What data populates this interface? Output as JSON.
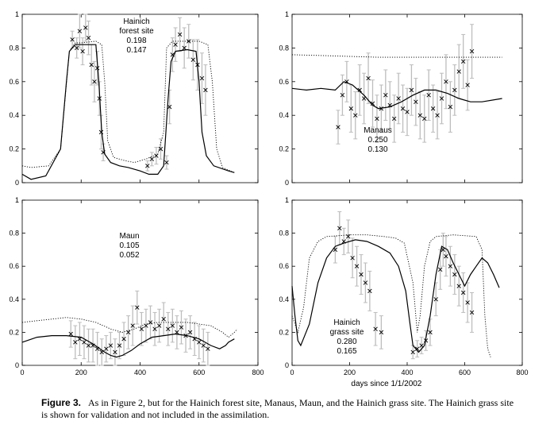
{
  "colors": {
    "obs": "#000000",
    "errorbar": "#bdbdbd",
    "prior_text": "#9a9a9a",
    "line": "#000000"
  },
  "caption": {
    "label": "Figure 3.",
    "text": "As in Figure 2, but for the Hainich forest site, Manaus, Maun, and the Hainich grass site. The Hainich grass site is shown for validation and not included in the assimilation."
  },
  "chart_data": [
    {
      "type": "line",
      "site_label": [
        "Hainich",
        "forest site"
      ],
      "prior_value": "0.198",
      "posterior_value": "0.147",
      "xlabel": "",
      "xlim": [
        0,
        800
      ],
      "ylim": [
        0,
        1
      ],
      "xticks": [],
      "yticks": [
        "0",
        "0.2",
        "0.4",
        "0.6",
        "0.8",
        "1"
      ],
      "dotted": [
        [
          0,
          0.1
        ],
        [
          30,
          0.09
        ],
        [
          90,
          0.1
        ],
        [
          130,
          0.2
        ],
        [
          160,
          0.78
        ],
        [
          180,
          0.83
        ],
        [
          200,
          0.83
        ],
        [
          250,
          0.84
        ],
        [
          270,
          0.82
        ],
        [
          280,
          0.6
        ],
        [
          290,
          0.25
        ],
        [
          310,
          0.15
        ],
        [
          330,
          0.14
        ],
        [
          350,
          0.13
        ],
        [
          380,
          0.12
        ],
        [
          420,
          0.14
        ],
        [
          460,
          0.17
        ],
        [
          480,
          0.3
        ],
        [
          490,
          0.8
        ],
        [
          510,
          0.84
        ],
        [
          600,
          0.84
        ],
        [
          630,
          0.82
        ],
        [
          645,
          0.6
        ],
        [
          660,
          0.2
        ],
        [
          680,
          0.09
        ],
        [
          720,
          0.06
        ]
      ],
      "solid": [
        [
          0,
          0.05
        ],
        [
          30,
          0.02
        ],
        [
          80,
          0.04
        ],
        [
          130,
          0.2
        ],
        [
          150,
          0.6
        ],
        [
          160,
          0.78
        ],
        [
          180,
          0.82
        ],
        [
          250,
          0.82
        ],
        [
          260,
          0.6
        ],
        [
          270,
          0.3
        ],
        [
          280,
          0.17
        ],
        [
          300,
          0.12
        ],
        [
          330,
          0.1
        ],
        [
          360,
          0.09
        ],
        [
          400,
          0.07
        ],
        [
          430,
          0.05
        ],
        [
          460,
          0.05
        ],
        [
          480,
          0.1
        ],
        [
          495,
          0.5
        ],
        [
          505,
          0.72
        ],
        [
          520,
          0.78
        ],
        [
          560,
          0.79
        ],
        [
          590,
          0.78
        ],
        [
          600,
          0.6
        ],
        [
          610,
          0.3
        ],
        [
          625,
          0.16
        ],
        [
          650,
          0.1
        ],
        [
          700,
          0.07
        ],
        [
          720,
          0.06
        ]
      ],
      "obs": [
        [
          170,
          0.85,
          0.05
        ],
        [
          185,
          0.8,
          0.06
        ],
        [
          195,
          0.9,
          0.1
        ],
        [
          205,
          0.78,
          0.08
        ],
        [
          215,
          0.92,
          0.08
        ],
        [
          225,
          0.86,
          0.1
        ],
        [
          235,
          0.7,
          0.12
        ],
        [
          245,
          0.6,
          0.12
        ],
        [
          255,
          0.68,
          0.1
        ],
        [
          262,
          0.5,
          0.1
        ],
        [
          268,
          0.3,
          0.1
        ],
        [
          275,
          0.18,
          0.05
        ],
        [
          425,
          0.1,
          0.03
        ],
        [
          440,
          0.14,
          0.04
        ],
        [
          455,
          0.16,
          0.05
        ],
        [
          470,
          0.2,
          0.06
        ],
        [
          490,
          0.12,
          0.04
        ],
        [
          500,
          0.45,
          0.1
        ],
        [
          510,
          0.76,
          0.1
        ],
        [
          520,
          0.82,
          0.1
        ],
        [
          535,
          0.88,
          0.1
        ],
        [
          550,
          0.8,
          0.12
        ],
        [
          565,
          0.84,
          0.1
        ],
        [
          580,
          0.73,
          0.12
        ],
        [
          595,
          0.7,
          0.15
        ],
        [
          610,
          0.62,
          0.15
        ],
        [
          622,
          0.55,
          0.15
        ]
      ]
    },
    {
      "type": "line",
      "site_label": [
        "Manaus"
      ],
      "prior_value": "0.250",
      "posterior_value": "0.130",
      "xlabel": "",
      "xlim": [
        0,
        800
      ],
      "ylim": [
        0,
        1
      ],
      "xticks": [],
      "yticks": [
        "0",
        "0.2",
        "0.4",
        "0.6",
        "0.8",
        "1"
      ],
      "dotted": [
        [
          0,
          0.76
        ],
        [
          100,
          0.755
        ],
        [
          200,
          0.75
        ],
        [
          300,
          0.745
        ],
        [
          400,
          0.745
        ],
        [
          500,
          0.745
        ],
        [
          600,
          0.745
        ],
        [
          730,
          0.745
        ]
      ],
      "solid": [
        [
          0,
          0.56
        ],
        [
          50,
          0.55
        ],
        [
          100,
          0.56
        ],
        [
          150,
          0.55
        ],
        [
          180,
          0.6
        ],
        [
          210,
          0.58
        ],
        [
          250,
          0.52
        ],
        [
          280,
          0.46
        ],
        [
          300,
          0.44
        ],
        [
          340,
          0.45
        ],
        [
          380,
          0.48
        ],
        [
          420,
          0.52
        ],
        [
          460,
          0.55
        ],
        [
          500,
          0.55
        ],
        [
          540,
          0.53
        ],
        [
          580,
          0.5
        ],
        [
          620,
          0.48
        ],
        [
          660,
          0.48
        ],
        [
          730,
          0.5
        ]
      ],
      "obs": [
        [
          160,
          0.33,
          0.1
        ],
        [
          175,
          0.52,
          0.12
        ],
        [
          190,
          0.6,
          0.12
        ],
        [
          205,
          0.44,
          0.14
        ],
        [
          220,
          0.4,
          0.14
        ],
        [
          235,
          0.55,
          0.15
        ],
        [
          250,
          0.5,
          0.15
        ],
        [
          265,
          0.62,
          0.15
        ],
        [
          280,
          0.47,
          0.14
        ],
        [
          295,
          0.38,
          0.14
        ],
        [
          310,
          0.44,
          0.14
        ],
        [
          325,
          0.52,
          0.15
        ],
        [
          340,
          0.46,
          0.14
        ],
        [
          355,
          0.38,
          0.14
        ],
        [
          370,
          0.5,
          0.15
        ],
        [
          385,
          0.44,
          0.14
        ],
        [
          400,
          0.42,
          0.14
        ],
        [
          415,
          0.55,
          0.15
        ],
        [
          430,
          0.48,
          0.14
        ],
        [
          445,
          0.4,
          0.14
        ],
        [
          460,
          0.38,
          0.14
        ],
        [
          475,
          0.52,
          0.15
        ],
        [
          490,
          0.44,
          0.14
        ],
        [
          505,
          0.4,
          0.14
        ],
        [
          520,
          0.5,
          0.15
        ],
        [
          535,
          0.6,
          0.16
        ],
        [
          550,
          0.45,
          0.15
        ],
        [
          565,
          0.55,
          0.15
        ],
        [
          580,
          0.66,
          0.16
        ],
        [
          595,
          0.72,
          0.16
        ],
        [
          610,
          0.58,
          0.15
        ],
        [
          625,
          0.78,
          0.16
        ]
      ]
    },
    {
      "type": "line",
      "site_label": [
        "Maun"
      ],
      "prior_value": "0.105",
      "posterior_value": "0.052",
      "xlabel": "",
      "xlim": [
        0,
        800
      ],
      "ylim": [
        0,
        1
      ],
      "xticks": [
        "0",
        "200",
        "400",
        "600",
        "800"
      ],
      "yticks": [
        "0",
        "0.2",
        "0.4",
        "0.6",
        "0.8",
        "1"
      ],
      "dotted": [
        [
          0,
          0.26
        ],
        [
          50,
          0.27
        ],
        [
          100,
          0.28
        ],
        [
          150,
          0.29
        ],
        [
          200,
          0.28
        ],
        [
          250,
          0.26
        ],
        [
          300,
          0.22
        ],
        [
          340,
          0.2
        ],
        [
          380,
          0.22
        ],
        [
          420,
          0.25
        ],
        [
          460,
          0.26
        ],
        [
          520,
          0.26
        ],
        [
          560,
          0.26
        ],
        [
          600,
          0.25
        ],
        [
          640,
          0.24
        ],
        [
          680,
          0.2
        ],
        [
          700,
          0.17
        ],
        [
          720,
          0.2
        ],
        [
          730,
          0.22
        ]
      ],
      "solid": [
        [
          0,
          0.14
        ],
        [
          50,
          0.17
        ],
        [
          100,
          0.18
        ],
        [
          150,
          0.18
        ],
        [
          200,
          0.17
        ],
        [
          240,
          0.13
        ],
        [
          280,
          0.08
        ],
        [
          300,
          0.06
        ],
        [
          320,
          0.05
        ],
        [
          340,
          0.06
        ],
        [
          370,
          0.09
        ],
        [
          400,
          0.13
        ],
        [
          440,
          0.17
        ],
        [
          480,
          0.18
        ],
        [
          520,
          0.19
        ],
        [
          560,
          0.18
        ],
        [
          600,
          0.16
        ],
        [
          640,
          0.12
        ],
        [
          670,
          0.1
        ],
        [
          690,
          0.12
        ],
        [
          700,
          0.14
        ],
        [
          720,
          0.16
        ]
      ],
      "obs": [
        [
          165,
          0.19,
          0.08
        ],
        [
          180,
          0.14,
          0.1
        ],
        [
          195,
          0.16,
          0.1
        ],
        [
          210,
          0.14,
          0.1
        ],
        [
          225,
          0.12,
          0.1
        ],
        [
          240,
          0.12,
          0.1
        ],
        [
          255,
          0.1,
          0.1
        ],
        [
          270,
          0.08,
          0.08
        ],
        [
          285,
          0.1,
          0.08
        ],
        [
          300,
          0.12,
          0.08
        ],
        [
          315,
          0.08,
          0.08
        ],
        [
          330,
          0.12,
          0.08
        ],
        [
          345,
          0.16,
          0.1
        ],
        [
          360,
          0.2,
          0.1
        ],
        [
          375,
          0.24,
          0.12
        ],
        [
          390,
          0.35,
          0.1
        ],
        [
          405,
          0.22,
          0.1
        ],
        [
          420,
          0.24,
          0.1
        ],
        [
          435,
          0.26,
          0.1
        ],
        [
          450,
          0.22,
          0.1
        ],
        [
          465,
          0.24,
          0.1
        ],
        [
          480,
          0.28,
          0.1
        ],
        [
          495,
          0.22,
          0.1
        ],
        [
          510,
          0.24,
          0.1
        ],
        [
          525,
          0.2,
          0.1
        ],
        [
          540,
          0.23,
          0.1
        ],
        [
          555,
          0.18,
          0.1
        ],
        [
          570,
          0.2,
          0.1
        ],
        [
          585,
          0.16,
          0.1
        ],
        [
          600,
          0.14,
          0.1
        ],
        [
          615,
          0.12,
          0.1
        ],
        [
          630,
          0.1,
          0.1
        ]
      ]
    },
    {
      "type": "line",
      "site_label": [
        "Hainich",
        "grass site"
      ],
      "prior_value": "0.280",
      "posterior_value": "0.165",
      "xlabel": "days since 1/1/2002",
      "xlim": [
        0,
        800
      ],
      "ylim": [
        0,
        1
      ],
      "xticks": [
        "0",
        "200",
        "400",
        "600",
        "800"
      ],
      "yticks": [
        "0",
        "0.2",
        "0.4",
        "0.6",
        "0.8",
        "1"
      ],
      "dotted": [
        [
          0,
          0.3
        ],
        [
          20,
          0.2
        ],
        [
          40,
          0.35
        ],
        [
          60,
          0.65
        ],
        [
          90,
          0.75
        ],
        [
          120,
          0.78
        ],
        [
          200,
          0.79
        ],
        [
          260,
          0.79
        ],
        [
          320,
          0.78
        ],
        [
          360,
          0.77
        ],
        [
          390,
          0.74
        ],
        [
          420,
          0.5
        ],
        [
          435,
          0.2
        ],
        [
          445,
          0.3
        ],
        [
          460,
          0.6
        ],
        [
          480,
          0.75
        ],
        [
          500,
          0.78
        ],
        [
          560,
          0.79
        ],
        [
          640,
          0.78
        ],
        [
          660,
          0.7
        ],
        [
          670,
          0.3
        ],
        [
          680,
          0.1
        ],
        [
          690,
          0.05
        ]
      ],
      "solid": [
        [
          0,
          0.48
        ],
        [
          10,
          0.3
        ],
        [
          20,
          0.15
        ],
        [
          30,
          0.12
        ],
        [
          60,
          0.25
        ],
        [
          90,
          0.5
        ],
        [
          120,
          0.65
        ],
        [
          150,
          0.72
        ],
        [
          180,
          0.74
        ],
        [
          220,
          0.76
        ],
        [
          260,
          0.75
        ],
        [
          300,
          0.72
        ],
        [
          340,
          0.68
        ],
        [
          370,
          0.6
        ],
        [
          395,
          0.45
        ],
        [
          410,
          0.25
        ],
        [
          420,
          0.12
        ],
        [
          440,
          0.08
        ],
        [
          460,
          0.12
        ],
        [
          480,
          0.3
        ],
        [
          500,
          0.55
        ],
        [
          520,
          0.72
        ],
        [
          540,
          0.7
        ],
        [
          560,
          0.62
        ],
        [
          580,
          0.55
        ],
        [
          600,
          0.48
        ],
        [
          620,
          0.55
        ],
        [
          640,
          0.6
        ],
        [
          660,
          0.65
        ],
        [
          680,
          0.62
        ],
        [
          700,
          0.55
        ],
        [
          720,
          0.47
        ]
      ],
      "obs": [
        [
          150,
          0.7,
          0.08
        ],
        [
          165,
          0.83,
          0.1
        ],
        [
          180,
          0.75,
          0.08
        ],
        [
          195,
          0.78,
          0.1
        ],
        [
          210,
          0.65,
          0.12
        ],
        [
          225,
          0.6,
          0.12
        ],
        [
          240,
          0.55,
          0.12
        ],
        [
          255,
          0.5,
          0.12
        ],
        [
          270,
          0.45,
          0.12
        ],
        [
          290,
          0.22,
          0.1
        ],
        [
          310,
          0.2,
          0.1
        ],
        [
          420,
          0.08,
          0.04
        ],
        [
          435,
          0.1,
          0.05
        ],
        [
          450,
          0.12,
          0.05
        ],
        [
          465,
          0.15,
          0.06
        ],
        [
          480,
          0.2,
          0.08
        ],
        [
          500,
          0.4,
          0.1
        ],
        [
          515,
          0.58,
          0.12
        ],
        [
          525,
          0.7,
          0.1
        ],
        [
          535,
          0.66,
          0.12
        ],
        [
          550,
          0.6,
          0.12
        ],
        [
          565,
          0.55,
          0.12
        ],
        [
          580,
          0.48,
          0.12
        ],
        [
          595,
          0.44,
          0.12
        ],
        [
          610,
          0.38,
          0.12
        ],
        [
          625,
          0.32,
          0.12
        ]
      ]
    }
  ]
}
